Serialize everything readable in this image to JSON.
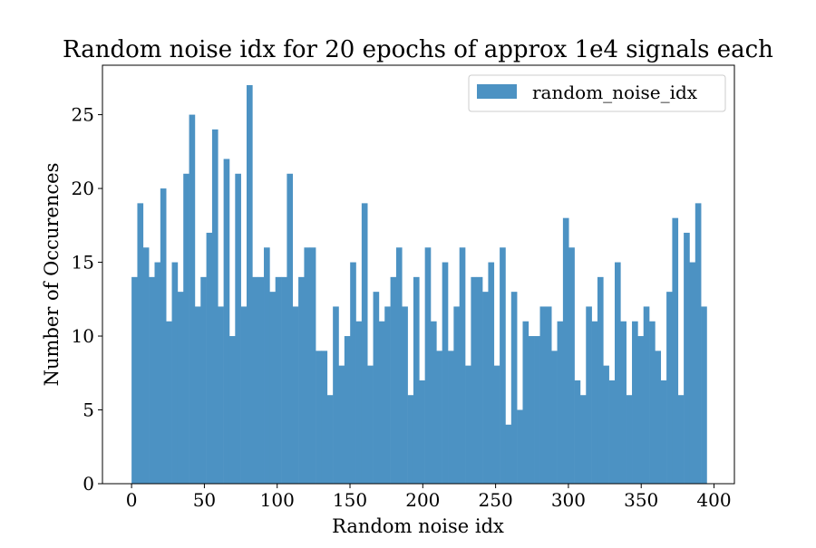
{
  "chart_data": {
    "type": "bar",
    "title": "Random noise idx for 20 epochs of approx 1e4 signals each",
    "xlabel": "Random noise idx",
    "ylabel": "Number of Occurences",
    "xlim": [
      -20,
      414
    ],
    "ylim": [
      0,
      28.35
    ],
    "x_ticks": [
      0,
      50,
      100,
      150,
      200,
      250,
      300,
      350,
      400
    ],
    "y_ticks": [
      0,
      5,
      10,
      15,
      20,
      25
    ],
    "bin_start": 0,
    "bin_width": 3.95,
    "legend_position": "top-right",
    "grid": false,
    "bar_color": "#4c92c3",
    "series": [
      {
        "name": "random_noise_idx",
        "values": [
          14,
          19,
          16,
          14,
          15,
          20,
          11,
          15,
          13,
          21,
          25,
          12,
          14,
          17,
          24,
          12,
          22,
          10,
          21,
          12,
          27,
          14,
          14,
          16,
          13,
          14,
          14,
          21,
          12,
          14,
          16,
          16,
          9,
          9,
          6,
          12,
          8,
          10,
          15,
          11,
          19,
          8,
          13,
          11,
          12,
          14,
          16,
          12,
          6,
          14,
          7,
          16,
          11,
          9,
          15,
          9,
          12,
          16,
          8,
          14,
          14,
          13,
          15,
          8,
          16,
          4,
          13,
          5,
          11,
          10,
          10,
          12,
          12,
          9,
          11,
          18,
          16,
          7,
          6,
          12,
          11,
          14,
          8,
          7,
          15,
          11,
          6,
          11,
          10,
          12,
          11,
          9,
          7,
          13,
          18,
          6,
          17,
          15,
          19,
          12
        ]
      }
    ]
  }
}
